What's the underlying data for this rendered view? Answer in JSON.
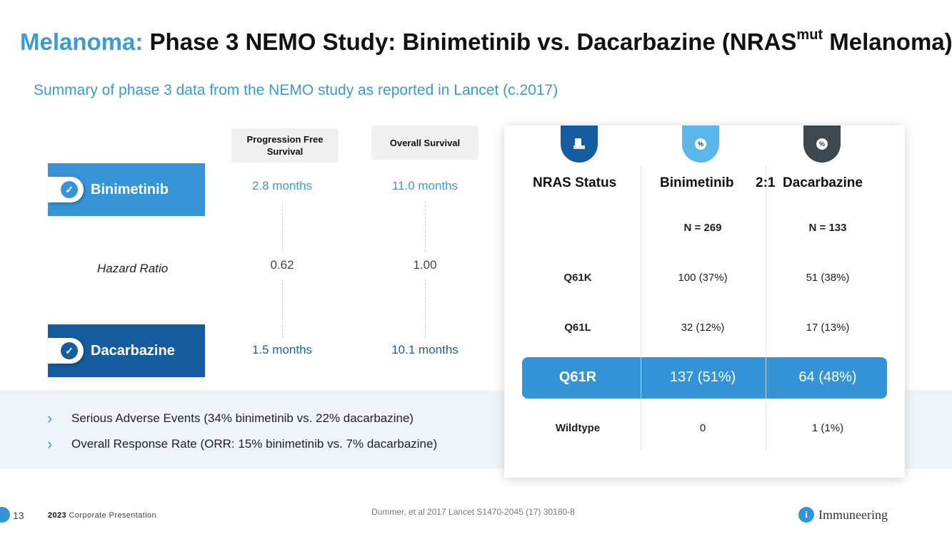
{
  "title": {
    "highlight": "Melanoma:",
    "main": "Phase 3 NEMO Study: Binimetinib vs. Dacarbazine (NRAS",
    "superscript": "mut",
    "end": "Melanoma)"
  },
  "subtitle": "Summary of phase 3 data from the NEMO study as reported in Lancet (c.2017)",
  "columns": {
    "pfs": "Progression Free Survival",
    "os": "Overall Survival"
  },
  "drugs": {
    "binimetinib": {
      "label": "Binimetinib",
      "pfs": "2.8 months",
      "os": "11.0 months"
    },
    "dacarbazine": {
      "label": "Dacarbazine",
      "pfs": "1.5 months",
      "os": "10.1 months"
    }
  },
  "hazard_ratio": {
    "label": "Hazard Ratio",
    "pfs": "0.62",
    "os": "1.00"
  },
  "bullets": [
    "Serious Adverse Events (34% binimetinib vs. 22% dacarbazine)",
    "Overall Response Rate (ORR: 15% binimetinib vs. 7% dacarbazine)"
  ],
  "table": {
    "headers": {
      "status": "NRAS Status",
      "bini": "Binimetinib",
      "ratio": "2:1",
      "dac": "Dacarbazine"
    },
    "n": {
      "bini": "N = 269",
      "dac": "N = 133"
    },
    "rows": [
      {
        "status": "Q61K",
        "bini": "100 (37%)",
        "dac": "51 (38%)"
      },
      {
        "status": "Q61L",
        "bini": "32 (12%)",
        "dac": "17 (13%)"
      },
      {
        "status": "Q61R",
        "bini": "137 (51%)",
        "dac": "64 (48%)"
      },
      {
        "status": "Wildtype",
        "bini": "0",
        "dac": "1 (1%)"
      }
    ],
    "badge_icons": [
      "document-icon",
      "percent-icon",
      "percent-icon"
    ]
  },
  "footer": {
    "page": "13",
    "year": "2023",
    "corp": "Corporate Presentation",
    "citation": "Dummer, et al 2017 Lancet S1470-2045 (17) 30180-8",
    "logo_text": "Immuneering"
  },
  "colors": {
    "accent": "#3a9bd5",
    "dark_blue": "#155d9e",
    "band": "#eef4fa",
    "slate": "#3d4850"
  }
}
